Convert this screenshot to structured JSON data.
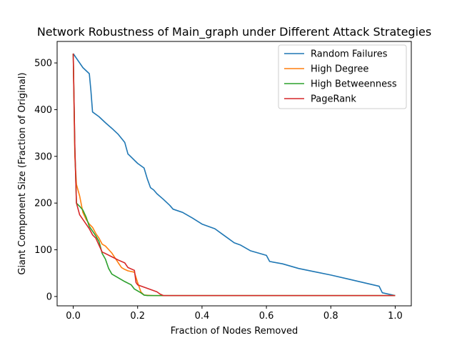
{
  "chart_data": {
    "type": "line",
    "title": "Network Robustness of Main_graph under Different Attack Strategies",
    "xlabel": "Fraction of Nodes Removed",
    "ylabel": "Giant Component Size (Fraction of Original)",
    "xlim": [
      -0.05,
      1.05
    ],
    "ylim": [
      -20,
      546
    ],
    "xticks": [
      0.0,
      0.2,
      0.4,
      0.6,
      0.8,
      1.0
    ],
    "xtick_labels": [
      "0.0",
      "0.2",
      "0.4",
      "0.6",
      "0.8",
      "1.0"
    ],
    "yticks": [
      0,
      100,
      200,
      300,
      400,
      500
    ],
    "ytick_labels": [
      "0",
      "100",
      "200",
      "300",
      "400",
      "500"
    ],
    "grid": false,
    "legend_position": "top-right",
    "series": [
      {
        "name": "Random Failures",
        "color": "#1f77b4",
        "x": [
          0.0,
          0.01,
          0.03,
          0.05,
          0.055,
          0.06,
          0.08,
          0.1,
          0.12,
          0.14,
          0.16,
          0.17,
          0.175,
          0.2,
          0.22,
          0.23,
          0.24,
          0.25,
          0.26,
          0.28,
          0.3,
          0.31,
          0.34,
          0.37,
          0.4,
          0.44,
          0.46,
          0.48,
          0.5,
          0.52,
          0.55,
          0.58,
          0.6,
          0.61,
          0.65,
          0.7,
          0.75,
          0.8,
          0.85,
          0.9,
          0.95,
          0.96,
          1.0
        ],
        "y": [
          520,
          510,
          490,
          477,
          440,
          395,
          385,
          372,
          360,
          347,
          330,
          305,
          302,
          285,
          275,
          252,
          233,
          228,
          220,
          208,
          195,
          187,
          180,
          168,
          155,
          145,
          135,
          125,
          115,
          110,
          98,
          92,
          88,
          75,
          70,
          60,
          53,
          46,
          38,
          30,
          22,
          8,
          2
        ]
      },
      {
        "name": "High Degree",
        "color": "#ff7f0e",
        "x": [
          0.0,
          0.005,
          0.01,
          0.02,
          0.03,
          0.04,
          0.05,
          0.06,
          0.07,
          0.08,
          0.09,
          0.1,
          0.12,
          0.14,
          0.15,
          0.16,
          0.17,
          0.19,
          0.2,
          0.21,
          0.22,
          0.25,
          1.0
        ],
        "y": [
          520,
          300,
          240,
          215,
          180,
          165,
          155,
          148,
          135,
          125,
          112,
          108,
          93,
          72,
          62,
          58,
          55,
          52,
          30,
          10,
          3,
          2,
          2
        ]
      },
      {
        "name": "High Betweenness",
        "color": "#2ca02c",
        "x": [
          0.0,
          0.005,
          0.01,
          0.02,
          0.03,
          0.04,
          0.05,
          0.06,
          0.07,
          0.08,
          0.09,
          0.1,
          0.11,
          0.12,
          0.14,
          0.16,
          0.18,
          0.19,
          0.2,
          0.21,
          0.22,
          0.23,
          0.25,
          1.0
        ],
        "y": [
          520,
          320,
          200,
          193,
          185,
          170,
          150,
          140,
          130,
          118,
          92,
          80,
          60,
          48,
          40,
          32,
          25,
          16,
          12,
          8,
          3,
          2,
          2,
          2
        ]
      },
      {
        "name": "PageRank",
        "color": "#d62728",
        "x": [
          0.0,
          0.005,
          0.01,
          0.02,
          0.03,
          0.04,
          0.05,
          0.06,
          0.07,
          0.08,
          0.09,
          0.1,
          0.12,
          0.14,
          0.16,
          0.17,
          0.19,
          0.195,
          0.2,
          0.22,
          0.24,
          0.26,
          0.27,
          0.28,
          0.3,
          1.0
        ],
        "y": [
          520,
          320,
          200,
          175,
          165,
          155,
          145,
          132,
          125,
          110,
          95,
          92,
          85,
          78,
          72,
          62,
          56,
          30,
          25,
          20,
          15,
          10,
          5,
          2,
          2,
          2
        ]
      }
    ]
  }
}
